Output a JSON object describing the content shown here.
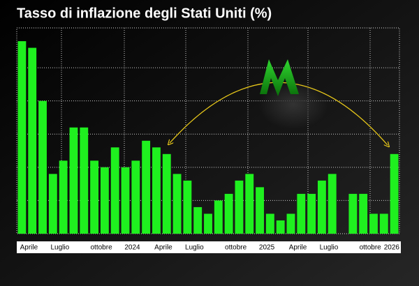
{
  "chart_data": {
    "type": "bar",
    "title": "Tasso di inflazione degli Stati Uniti (%)",
    "categories": [
      "Aprile",
      null,
      null,
      "Luglio",
      null,
      null,
      null,
      "ottobre",
      null,
      null,
      "2024",
      null,
      null,
      "Aprile",
      null,
      null,
      "Luglio",
      null,
      null,
      null,
      "ottobre",
      null,
      null,
      "2025",
      null,
      null,
      "Aprile",
      null,
      null,
      "Luglio",
      null,
      null,
      null,
      "ottobre",
      null,
      null,
      "2026"
    ],
    "values": [
      4.9,
      4.8,
      4.0,
      2.9,
      3.1,
      3.6,
      3.6,
      3.1,
      3.0,
      3.3,
      3.0,
      3.1,
      3.4,
      3.3,
      3.2,
      2.9,
      2.8,
      2.4,
      2.3,
      2.5,
      2.6,
      2.8,
      2.9,
      2.7,
      2.3,
      2.2,
      2.3,
      2.6,
      2.6,
      2.8,
      2.9,
      null,
      2.6,
      2.6,
      2.3,
      2.3,
      3.2
    ],
    "color": "#1ff01f",
    "ylim": [
      2.0,
      5.1
    ],
    "yticks": [
      2.5,
      3.0,
      3.5,
      4.0,
      4.5
    ],
    "grid": true
  }
}
